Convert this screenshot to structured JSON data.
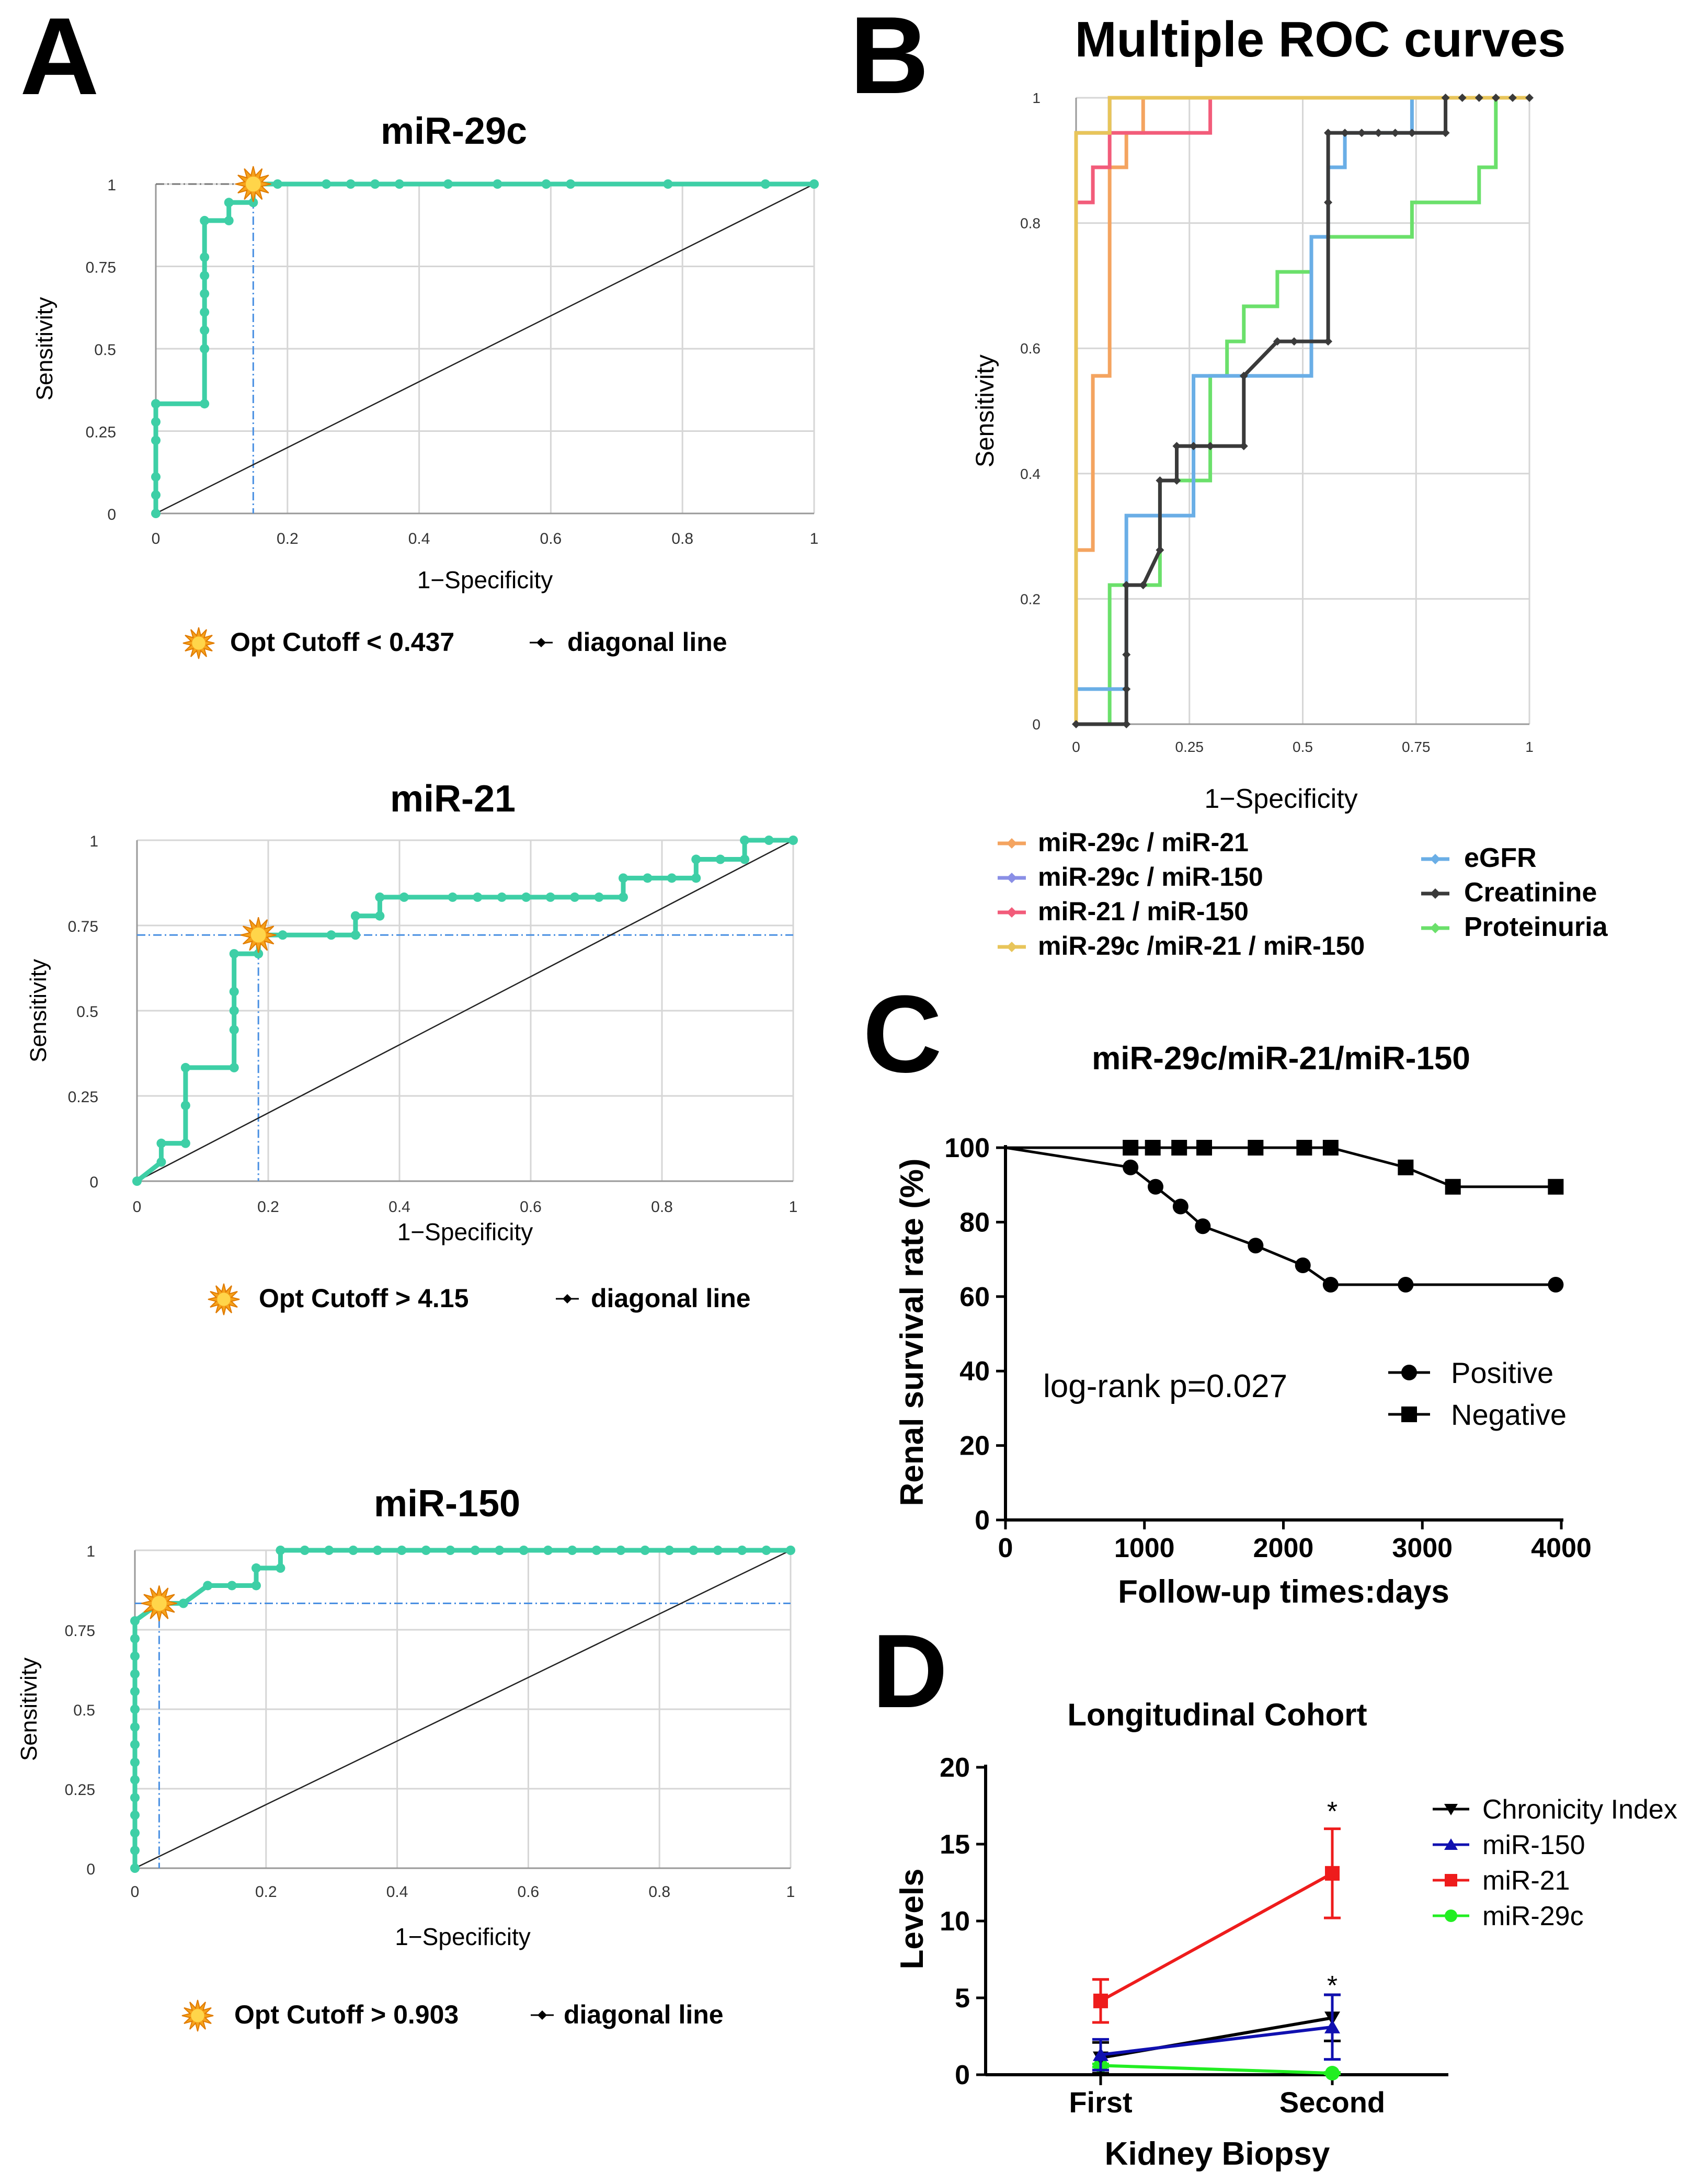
{
  "colors": {
    "roc_line": "#3ecfa6",
    "ref_line": "#4a90e2",
    "grid": "#d6d6d6",
    "star_outer": "#f6a21b",
    "star_inner": "#ffd54a",
    "miR29c_miR21": "#f4a460",
    "miR29c_miR150": "#8a8fe6",
    "miR21_miR150": "#f25c7a",
    "triple": "#e8c55a",
    "eGFR": "#6aaee6",
    "creatinine": "#3a3a3a",
    "proteinuria": "#6be06b",
    "km_line": "#000000",
    "chronicity": "#000000",
    "miR150": "#1010b0",
    "miR21": "#ee1c1c",
    "miR29c": "#22ee22"
  },
  "panel_a": {
    "letter": "A",
    "charts": [
      {
        "title": "miR-29c",
        "xlabel": "1−Specificity",
        "ylabel": "Sensitivity",
        "yticks": [
          "0",
          "0.25",
          "0.5",
          "0.75",
          "1"
        ],
        "xticks": [
          "0",
          "0.2",
          "0.4",
          "0.6",
          "0.8",
          "1"
        ],
        "legend_cutoff": "Opt Cutoff < 0.437",
        "legend_diag": "diagonal line"
      },
      {
        "title": "miR-21",
        "xlabel": "1−Specificity",
        "ylabel": "Sensitivity",
        "yticks": [
          "0",
          "0.25",
          "0.5",
          "0.75",
          "1"
        ],
        "xticks": [
          "0",
          "0.2",
          "0.4",
          "0.6",
          "0.8",
          "1"
        ],
        "legend_cutoff": "Opt Cutoff > 4.15",
        "legend_diag": "diagonal line"
      },
      {
        "title": "miR-150",
        "xlabel": "1−Specificity",
        "ylabel": "Sensitivity",
        "yticks": [
          "0",
          "0.25",
          "0.5",
          "0.75",
          "1"
        ],
        "xticks": [
          "0",
          "0.2",
          "0.4",
          "0.6",
          "0.8",
          "1"
        ],
        "legend_cutoff": "Opt Cutoff > 0.903",
        "legend_diag": "diagonal line"
      }
    ]
  },
  "panel_b": {
    "letter": "B",
    "title": "Multiple ROC curves",
    "xlabel": "1−Specificity",
    "ylabel": "Sensitivity",
    "yticks": [
      "0",
      "0.2",
      "0.4",
      "0.6",
      "0.8",
      "1"
    ],
    "xticks": [
      "0",
      "0.25",
      "0.5",
      "0.75",
      "1"
    ],
    "legend_left": [
      "miR-29c / miR-21",
      "miR-29c / miR-150",
      "miR-21 / miR-150",
      "miR-29c /miR-21 / miR-150"
    ],
    "legend_right": [
      "eGFR",
      "Creatinine",
      "Proteinuria"
    ]
  },
  "panel_c": {
    "letter": "C",
    "title": "miR-29c/miR-21/miR-150",
    "xlabel": "Follow-up times:days",
    "ylabel": "Renal survival rate  (%)",
    "yticks": [
      "0",
      "20",
      "40",
      "60",
      "80",
      "100"
    ],
    "xticks": [
      "0",
      "1000",
      "2000",
      "3000",
      "4000"
    ],
    "annotation": "log-rank p=0.027",
    "legend": [
      "Positive",
      "Negative"
    ]
  },
  "panel_d": {
    "letter": "D",
    "title": "Longitudinal Cohort",
    "xlabel": "Kidney Biopsy",
    "ylabel": "Levels",
    "yticks": [
      "0",
      "5",
      "10",
      "15",
      "20"
    ],
    "categories": [
      "First",
      "Second"
    ],
    "legend": [
      "Chronicity Index",
      "miR-150",
      "miR-21",
      "miR-29c"
    ],
    "sig_marks": [
      "*",
      "*"
    ]
  },
  "chart_data": [
    {
      "type": "line",
      "title": "miR-29c",
      "xlabel": "1−Specificity",
      "ylabel": "Sensitivity",
      "xlim": [
        0,
        1
      ],
      "ylim": [
        0,
        1
      ],
      "series": [
        {
          "name": "ROC",
          "x": [
            0,
            0,
            0,
            0,
            0,
            0,
            0.074,
            0.074,
            0.074,
            0.074,
            0.074,
            0.074,
            0.074,
            0.074,
            0.111,
            0.111,
            0.148,
            0.148,
            0.185,
            0.259,
            0.296,
            0.333,
            0.37,
            0.444,
            0.519,
            0.593,
            0.63,
            0.778,
            0.926,
            1
          ],
          "y": [
            0,
            0.056,
            0.111,
            0.222,
            0.278,
            0.333,
            0.333,
            0.5,
            0.556,
            0.611,
            0.667,
            0.722,
            0.778,
            0.889,
            0.889,
            0.944,
            0.944,
            1,
            1,
            1,
            1,
            1,
            1,
            1,
            1,
            1,
            1,
            1,
            1,
            1
          ]
        },
        {
          "name": "diagonal line",
          "x": [
            0,
            1
          ],
          "y": [
            0,
            1
          ]
        }
      ],
      "optimal_cutoff": {
        "label": "Opt Cutoff < 0.437",
        "x": 0.148,
        "y": 1
      }
    },
    {
      "type": "line",
      "title": "miR-21",
      "xlabel": "1−Specificity",
      "ylabel": "Sensitivity",
      "xlim": [
        0,
        1
      ],
      "ylim": [
        0,
        1
      ],
      "series": [
        {
          "name": "ROC",
          "x": [
            0,
            0.037,
            0.037,
            0.074,
            0.074,
            0.074,
            0.148,
            0.148,
            0.148,
            0.148,
            0.148,
            0.185,
            0.185,
            0.222,
            0.296,
            0.333,
            0.333,
            0.37,
            0.37,
            0.407,
            0.481,
            0.519,
            0.556,
            0.593,
            0.63,
            0.667,
            0.704,
            0.741,
            0.741,
            0.778,
            0.815,
            0.852,
            0.852,
            0.889,
            0.926,
            0.926,
            0.963,
            1
          ],
          "y": [
            0,
            0.056,
            0.111,
            0.111,
            0.222,
            0.333,
            0.333,
            0.444,
            0.5,
            0.556,
            0.667,
            0.667,
            0.722,
            0.722,
            0.722,
            0.722,
            0.778,
            0.778,
            0.833,
            0.833,
            0.833,
            0.833,
            0.833,
            0.833,
            0.833,
            0.833,
            0.833,
            0.833,
            0.889,
            0.889,
            0.889,
            0.889,
            0.944,
            0.944,
            0.944,
            1,
            1,
            1
          ]
        },
        {
          "name": "diagonal line",
          "x": [
            0,
            1
          ],
          "y": [
            0,
            1
          ]
        }
      ],
      "optimal_cutoff": {
        "label": "Opt Cutoff > 4.15",
        "x": 0.185,
        "y": 0.722
      }
    },
    {
      "type": "line",
      "title": "miR-150",
      "xlabel": "1−Specificity",
      "ylabel": "Sensitivity",
      "xlim": [
        0,
        1
      ],
      "ylim": [
        0,
        1
      ],
      "series": [
        {
          "name": "ROC",
          "x": [
            0,
            0,
            0,
            0,
            0,
            0,
            0,
            0,
            0,
            0,
            0,
            0,
            0,
            0,
            0,
            0.037,
            0.074,
            0.111,
            0.148,
            0.185,
            0.185,
            0.222,
            0.222,
            0.259,
            0.296,
            0.333,
            0.37,
            0.407,
            0.444,
            0.481,
            0.519,
            0.556,
            0.593,
            0.63,
            0.667,
            0.704,
            0.741,
            0.778,
            0.815,
            0.852,
            0.889,
            0.926,
            0.963,
            1
          ],
          "y": [
            0,
            0.056,
            0.111,
            0.167,
            0.222,
            0.278,
            0.333,
            0.389,
            0.444,
            0.5,
            0.556,
            0.611,
            0.667,
            0.722,
            0.778,
            0.833,
            0.833,
            0.889,
            0.889,
            0.889,
            0.944,
            0.944,
            1,
            1,
            1,
            1,
            1,
            1,
            1,
            1,
            1,
            1,
            1,
            1,
            1,
            1,
            1,
            1,
            1,
            1,
            1,
            1,
            1,
            1
          ]
        },
        {
          "name": "diagonal line",
          "x": [
            0,
            1
          ],
          "y": [
            0,
            1
          ]
        }
      ],
      "optimal_cutoff": {
        "label": "Opt Cutoff > 0.903",
        "x": 0.037,
        "y": 0.833
      }
    },
    {
      "type": "line",
      "title": "Multiple ROC curves",
      "xlabel": "1−Specificity",
      "ylabel": "Sensitivity",
      "xlim": [
        0,
        1
      ],
      "ylim": [
        0,
        1
      ],
      "series": [
        {
          "name": "miR-29c / miR-21",
          "x": [
            0,
            0,
            0.037,
            0.037,
            0.074,
            0.074,
            0.111,
            0.111,
            0.148,
            0.148,
            0.185,
            0.185,
            0.185,
            0.222,
            0.259,
            0.296,
            0.333,
            0.37,
            0.407,
            0.444,
            0.481,
            0.519,
            0.556,
            0.593,
            0.63,
            0.667,
            0.704,
            0.741,
            0.778,
            0.815,
            0.852,
            0.889,
            0.926,
            0.963,
            1
          ],
          "y": [
            0,
            0.278,
            0.278,
            0.556,
            0.556,
            0.889,
            0.889,
            0.944,
            0.944,
            1,
            1,
            1,
            1,
            1,
            1,
            1,
            1,
            1,
            1,
            1,
            1,
            1,
            1,
            1,
            1,
            1,
            1,
            1,
            1,
            1,
            1,
            1,
            1,
            1,
            1
          ]
        },
        {
          "name": "miR-29c / miR-150",
          "x": [
            0,
            0,
            0.074,
            0.074,
            1
          ],
          "y": [
            0,
            0.944,
            0.944,
            1,
            1
          ]
        },
        {
          "name": "miR-21 / miR-150",
          "x": [
            0,
            0,
            0.037,
            0.037,
            0.074,
            0.074,
            0.296,
            0.296,
            1
          ],
          "y": [
            0,
            0.833,
            0.833,
            0.889,
            0.889,
            0.944,
            0.944,
            1,
            1
          ]
        },
        {
          "name": "miR-29c /miR-21 / miR-150",
          "x": [
            0,
            0,
            0.074,
            0.074,
            1
          ],
          "y": [
            0,
            0.944,
            0.944,
            1,
            1
          ]
        },
        {
          "name": "eGFR",
          "x": [
            0,
            0,
            0.111,
            0.111,
            0.259,
            0.259,
            0.519,
            0.519,
            0.556,
            0.556,
            0.593,
            0.593,
            0.741,
            0.741,
            1
          ],
          "y": [
            0,
            0.056,
            0.056,
            0.333,
            0.333,
            0.556,
            0.556,
            0.778,
            0.778,
            0.889,
            0.889,
            0.944,
            0.944,
            1,
            1
          ]
        },
        {
          "name": "Creatinine",
          "x": [
            0,
            0.111,
            0.111,
            0.111,
            0.111,
            0.148,
            0.148,
            0.185,
            0.185,
            0.222,
            0.222,
            0.259,
            0.296,
            0.37,
            0.37,
            0.444,
            0.481,
            0.556,
            0.556,
            0.556,
            0.593,
            0.63,
            0.667,
            0.704,
            0.741,
            0.815,
            0.815,
            0.852,
            0.889,
            0.926,
            0.963,
            1
          ],
          "y": [
            0,
            0,
            0.056,
            0.111,
            0.222,
            0.222,
            0.222,
            0.278,
            0.389,
            0.389,
            0.444,
            0.444,
            0.444,
            0.444,
            0.556,
            0.611,
            0.611,
            0.611,
            0.833,
            0.944,
            0.944,
            0.944,
            0.944,
            0.944,
            0.944,
            0.944,
            1,
            1,
            1,
            1,
            1,
            1
          ]
        },
        {
          "name": "Proteinuria",
          "x": [
            0,
            0.074,
            0.074,
            0.185,
            0.185,
            0.296,
            0.296,
            0.333,
            0.333,
            0.37,
            0.37,
            0.444,
            0.444,
            0.519,
            0.519,
            0.556,
            0.556,
            0.741,
            0.741,
            0.889,
            0.889,
            0.926,
            0.926,
            1
          ],
          "y": [
            0,
            0,
            0.222,
            0.222,
            0.389,
            0.389,
            0.556,
            0.556,
            0.611,
            0.611,
            0.667,
            0.667,
            0.722,
            0.722,
            0.778,
            0.778,
            0.778,
            0.778,
            0.833,
            0.833,
            0.889,
            0.889,
            1,
            1
          ]
        }
      ]
    },
    {
      "type": "line",
      "title": "miR-29c/miR-21/miR-150",
      "xlabel": "Follow-up times:days",
      "ylabel": "Renal survival rate  (%)",
      "xlim": [
        0,
        4000
      ],
      "ylim": [
        0,
        100
      ],
      "series": [
        {
          "name": "Positive",
          "x": [
            0,
            900,
            1080,
            1260,
            1420,
            1800,
            2140,
            2340,
            2880,
            3960
          ],
          "y": [
            100,
            94.7,
            89.5,
            84.2,
            78.9,
            73.7,
            68.4,
            63.2,
            63.2,
            63.2
          ]
        },
        {
          "name": "Negative",
          "x": [
            0,
            900,
            1060,
            1250,
            1430,
            1800,
            2150,
            2340,
            2880,
            3220,
            3960
          ],
          "y": [
            100,
            100,
            100,
            100,
            100,
            100,
            100,
            100,
            94.7,
            89.5,
            89.5
          ]
        }
      ],
      "annotation": "log-rank p=0.027"
    },
    {
      "type": "line",
      "title": "Longitudinal Cohort",
      "xlabel": "Kidney Biopsy",
      "ylabel": "Levels",
      "categories": [
        "First",
        "Second"
      ],
      "ylim": [
        0,
        20
      ],
      "series": [
        {
          "name": "Chronicity Index",
          "values": [
            1.1,
            3.7
          ],
          "error": [
            1.0,
            1.5
          ]
        },
        {
          "name": "miR-150",
          "values": [
            1.3,
            3.1
          ],
          "error": [
            1.0,
            2.1
          ]
        },
        {
          "name": "miR-21",
          "values": [
            4.8,
            13.1
          ],
          "error": [
            1.4,
            2.9
          ]
        },
        {
          "name": "miR-29c",
          "values": [
            0.6,
            0.1
          ],
          "error": [
            0.1,
            0.05
          ]
        }
      ],
      "significance": [
        "*",
        "*"
      ]
    }
  ]
}
